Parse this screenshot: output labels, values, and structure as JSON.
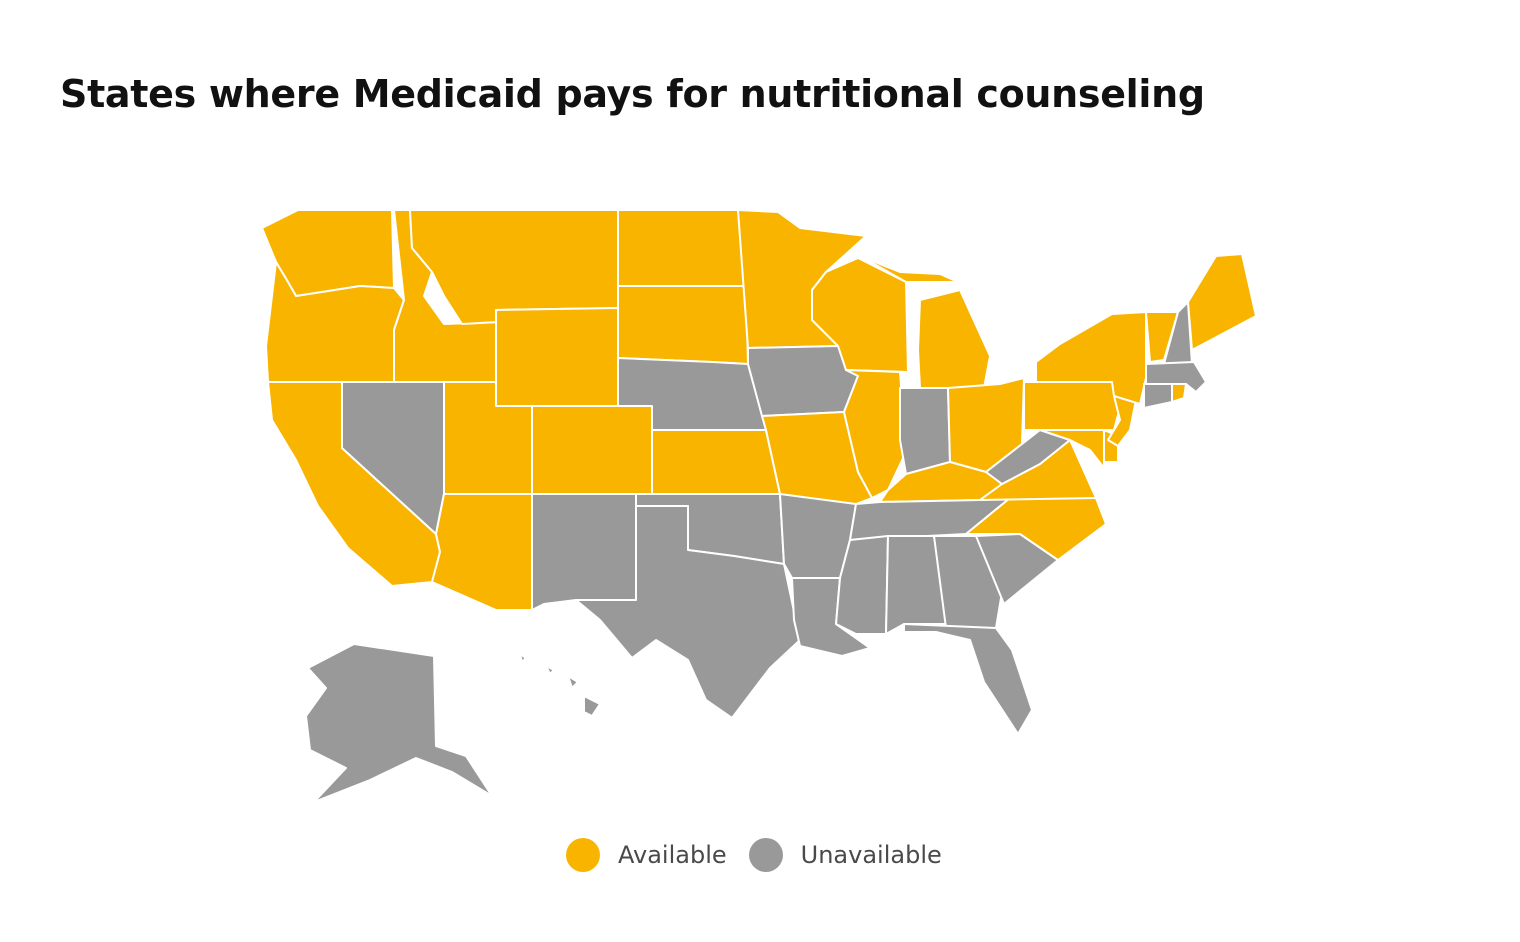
{
  "title": "States where Medicaid pays for nutritional counseling",
  "colors": {
    "available": "#F9B400",
    "unavailable": "#999999",
    "border": "#FFFFFF"
  },
  "legend": [
    {
      "label": "Available",
      "color": "#F9B400"
    },
    {
      "label": "Unavailable",
      "color": "#999999"
    }
  ],
  "chart_data": {
    "type": "choropleth",
    "title": "States where Medicaid pays for nutritional counseling",
    "categories": [
      "Available",
      "Unavailable"
    ],
    "available": [
      "WA",
      "OR",
      "CA",
      "ID",
      "MT",
      "WY",
      "UT",
      "AZ",
      "CO",
      "ND",
      "SD",
      "KS",
      "MN",
      "WI",
      "IL",
      "MO",
      "MI",
      "OH",
      "KY",
      "VA",
      "NC",
      "PA",
      "NY",
      "NJ",
      "DE",
      "MD",
      "DC",
      "VT",
      "ME",
      "RI"
    ],
    "unavailable": [
      "NV",
      "NM",
      "TX",
      "OK",
      "NE",
      "IA",
      "IN",
      "WV",
      "AR",
      "LA",
      "MS",
      "AL",
      "GA",
      "FL",
      "SC",
      "TN",
      "NH",
      "MA",
      "CT",
      "AK",
      "HI"
    ]
  }
}
